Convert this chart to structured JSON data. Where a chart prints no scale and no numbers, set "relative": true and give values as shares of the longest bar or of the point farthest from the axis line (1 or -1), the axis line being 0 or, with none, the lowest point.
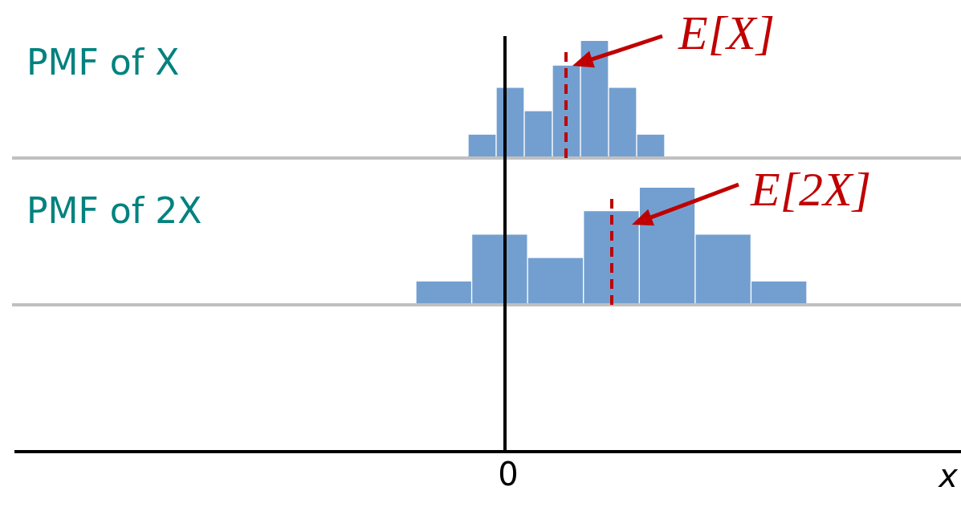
{
  "chart_data": [
    {
      "type": "bar",
      "ylabel": "PMF of X",
      "relative": true,
      "categories": [
        null,
        null,
        null,
        null,
        null,
        null,
        null
      ],
      "values": [
        0.2,
        0.6,
        0.4,
        0.79,
        1,
        0.6,
        0.2
      ],
      "color": "#739fd0",
      "tick_labels": false,
      "legend": false,
      "annotations": [
        "E[X]"
      ]
    },
    {
      "type": "bar",
      "ylabel": "PMF of 2X",
      "relative": true,
      "categories": [
        null,
        null,
        null,
        null,
        null,
        null,
        null
      ],
      "values": [
        0.2,
        0.6,
        0.4,
        0.8,
        1,
        0.6,
        0.2
      ],
      "color": "#739fd0",
      "xlabel": "x",
      "tick_labels": false,
      "legend": false,
      "annotations": [
        "E[2X]",
        "0"
      ]
    }
  ]
}
